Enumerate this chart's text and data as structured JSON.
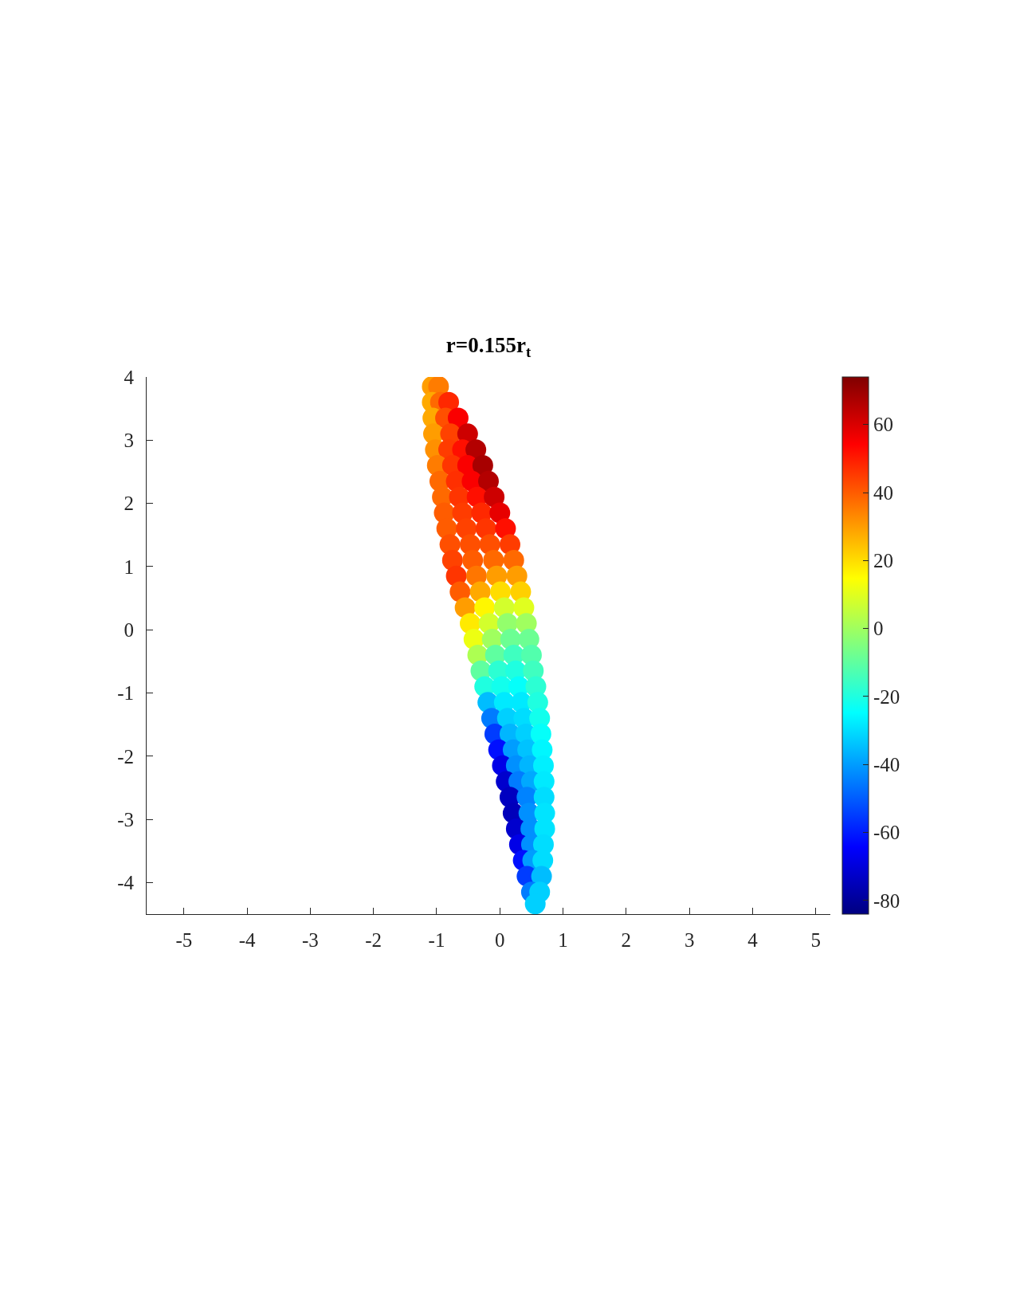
{
  "chart_data": {
    "type": "scatter",
    "title": "r=0.155r$_{t}$",
    "marker": "circle",
    "x": [
      -1.07,
      -0.97,
      -1.07,
      -0.94,
      -0.81,
      -1.06,
      -0.86,
      -0.66,
      -1.05,
      -0.78,
      -0.51,
      -1.02,
      -0.81,
      -0.59,
      -0.38,
      -0.99,
      -0.75,
      -0.51,
      -0.27,
      -0.95,
      -0.69,
      -0.44,
      -0.18,
      -0.91,
      -0.64,
      -0.36,
      -0.09,
      -0.88,
      -0.59,
      -0.29,
      0.0,
      -0.84,
      -0.53,
      -0.22,
      0.09,
      -0.79,
      -0.47,
      -0.16,
      0.16,
      -0.75,
      -0.43,
      -0.1,
      0.22,
      -0.69,
      -0.37,
      -0.05,
      0.27,
      -0.63,
      -0.31,
      0.01,
      0.33,
      -0.55,
      -0.24,
      0.07,
      0.38,
      -0.47,
      -0.17,
      0.12,
      0.42,
      -0.41,
      -0.12,
      0.17,
      0.46,
      -0.35,
      -0.07,
      0.22,
      0.5,
      -0.3,
      -0.02,
      0.25,
      0.53,
      -0.24,
      0.03,
      0.3,
      0.57,
      -0.19,
      0.07,
      0.34,
      0.6,
      -0.13,
      0.12,
      0.38,
      0.63,
      -0.08,
      0.16,
      0.41,
      0.65,
      -0.02,
      0.21,
      0.44,
      0.67,
      0.04,
      0.26,
      0.47,
      0.69,
      0.1,
      0.3,
      0.5,
      0.7,
      0.16,
      0.43,
      0.7,
      0.21,
      0.46,
      0.71,
      0.26,
      0.49,
      0.71,
      0.31,
      0.5,
      0.69,
      0.37,
      0.52,
      0.68,
      0.43,
      0.66,
      0.5,
      0.63,
      0.56
    ],
    "values": [
      3.85,
      3.85,
      3.6,
      3.6,
      3.6,
      3.35,
      3.35,
      3.35,
      3.1,
      3.1,
      3.1,
      2.85,
      2.85,
      2.85,
      2.85,
      2.6,
      2.6,
      2.6,
      2.6,
      2.35,
      2.35,
      2.35,
      2.35,
      2.1,
      2.1,
      2.1,
      2.1,
      1.85,
      1.85,
      1.85,
      1.85,
      1.6,
      1.6,
      1.6,
      1.6,
      1.35,
      1.35,
      1.35,
      1.35,
      1.1,
      1.1,
      1.1,
      1.1,
      0.85,
      0.85,
      0.85,
      0.85,
      0.6,
      0.6,
      0.6,
      0.6,
      0.35,
      0.35,
      0.35,
      0.35,
      0.1,
      0.1,
      0.1,
      0.1,
      -0.15,
      -0.15,
      -0.15,
      -0.15,
      -0.4,
      -0.4,
      -0.4,
      -0.4,
      -0.65,
      -0.65,
      -0.65,
      -0.65,
      -0.9,
      -0.9,
      -0.9,
      -0.9,
      -1.15,
      -1.15,
      -1.15,
      -1.15,
      -1.4,
      -1.4,
      -1.4,
      -1.4,
      -1.65,
      -1.65,
      -1.65,
      -1.65,
      -1.9,
      -1.9,
      -1.9,
      -1.9,
      -2.15,
      -2.15,
      -2.15,
      -2.15,
      -2.4,
      -2.4,
      -2.4,
      -2.4,
      -2.65,
      -2.65,
      -2.65,
      -2.9,
      -2.9,
      -2.9,
      -3.15,
      -3.15,
      -3.15,
      -3.4,
      -3.4,
      -3.4,
      -3.65,
      -3.65,
      -3.65,
      -3.9,
      -3.9,
      -4.15,
      -4.15,
      -4.34
    ],
    "cvalues": [
      30,
      35,
      28,
      38,
      48,
      28,
      42,
      55,
      30,
      44,
      62,
      32,
      45,
      52,
      66,
      35,
      46,
      55,
      68,
      38,
      47,
      55,
      66,
      38,
      46,
      52,
      62,
      40,
      45,
      48,
      58,
      40,
      44,
      46,
      52,
      42,
      42,
      42,
      45,
      44,
      40,
      38,
      38,
      46,
      36,
      30,
      30,
      40,
      28,
      20,
      22,
      30,
      16,
      8,
      10,
      18,
      8,
      -2,
      0,
      12,
      0,
      -8,
      -8,
      2,
      -10,
      -15,
      -12,
      -10,
      -18,
      -20,
      -15,
      -20,
      -22,
      -24,
      -18,
      -35,
      -28,
      -28,
      -20,
      -45,
      -32,
      -30,
      -22,
      -55,
      -36,
      -32,
      -24,
      -62,
      -40,
      -34,
      -26,
      -68,
      -42,
      -36,
      -27,
      -72,
      -45,
      -38,
      -28,
      -74,
      -44,
      -30,
      -75,
      -42,
      -29,
      -72,
      -42,
      -29,
      -68,
      -42,
      -30,
      -62,
      -40,
      -30,
      -55,
      -35,
      -45,
      -32,
      -32
    ],
    "xlim": [
      -5.59,
      5.23
    ],
    "ylim": [
      -4.5,
      4
    ],
    "xticks": [
      -5,
      -4,
      -3,
      -2,
      -1,
      0,
      1,
      2,
      3,
      4,
      5
    ],
    "yticks": [
      -4,
      -3,
      -2,
      -1,
      0,
      1,
      2,
      3,
      4
    ],
    "clim": [
      -84,
      74
    ],
    "cticks": [
      -80,
      -60,
      -40,
      -20,
      0,
      20,
      40,
      60
    ]
  }
}
